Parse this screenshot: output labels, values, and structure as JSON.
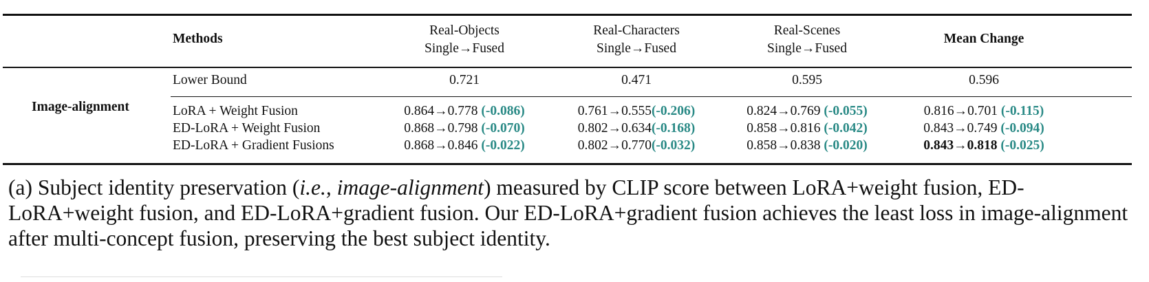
{
  "columns": {
    "methods": "Methods",
    "objects_1": "Real-Objects",
    "objects_2": "Single→Fused",
    "characters_1": "Real-Characters",
    "characters_2": "Single→Fused",
    "scenes_1": "Real-Scenes",
    "scenes_2": "Single→Fused",
    "mean": "Mean Change"
  },
  "group_label": "Image-alignment",
  "lower_bound": {
    "method": "Lower Bound",
    "objects": "0.721",
    "characters": "0.471",
    "scenes": "0.595",
    "mean": "0.596"
  },
  "rows": [
    {
      "method": "LoRA + Weight Fusion",
      "objects": {
        "single": "0.864",
        "fused": "0.778",
        "delta": "(-0.086)"
      },
      "characters": {
        "single": "0.761",
        "fused": "0.555",
        "delta": "(-0.206)"
      },
      "scenes": {
        "single": "0.824",
        "fused": "0.769",
        "delta": "(-0.055)"
      },
      "mean": {
        "single": "0.816",
        "fused": "0.701",
        "delta": "(-0.115)"
      }
    },
    {
      "method": "ED-LoRA + Weight Fusion",
      "objects": {
        "single": "0.868",
        "fused": "0.798",
        "delta": "(-0.070)"
      },
      "characters": {
        "single": "0.802",
        "fused": "0.634",
        "delta": "(-0.168)"
      },
      "scenes": {
        "single": "0.858",
        "fused": "0.816",
        "delta": "(-0.042)"
      },
      "mean": {
        "single": "0.843",
        "fused": "0.749",
        "delta": "(-0.094)"
      }
    },
    {
      "method": "ED-LoRA + Gradient Fusions",
      "objects": {
        "single": "0.868",
        "fused": "0.846",
        "delta": "(-0.022)"
      },
      "characters": {
        "single": "0.802",
        "fused": "0.770",
        "delta": "(-0.032)"
      },
      "scenes": {
        "single": "0.858",
        "fused": "0.838",
        "delta": "(-0.020)"
      },
      "mean": {
        "single": "0.843",
        "fused": "0.818",
        "delta": "(-0.025)"
      }
    }
  ],
  "arrow": "→",
  "caption": {
    "prefix": "(a) Subject identity preservation (",
    "italic": "i.e., image-alignment",
    "rest": ") measured by CLIP score between LoRA+weight fusion, ED-LoRA+weight fusion, and ED-LoRA+gradient fusion. Our ED-LoRA+gradient fusion achieves the least loss in image-alignment after multi-concept fusion, preserving the best subject identity."
  },
  "colors": {
    "delta": "#2a8a86",
    "text": "#111111"
  }
}
